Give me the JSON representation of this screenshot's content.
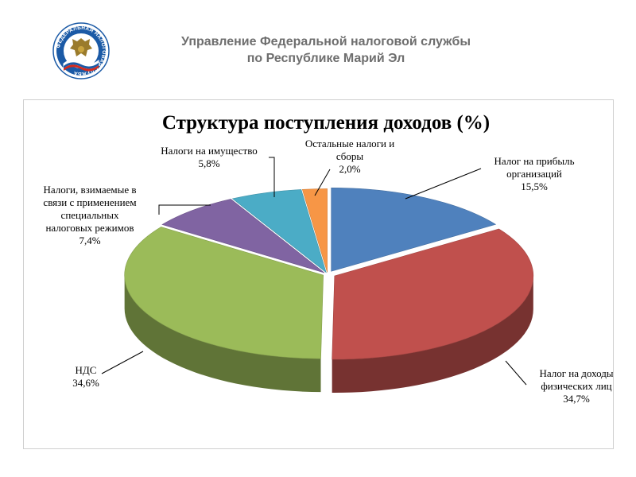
{
  "header": {
    "line1": "Управление Федеральной налоговой службы",
    "line2": "по Республике Марий Эл"
  },
  "logo": {
    "icon": "tax-service-emblem-icon",
    "ring_text": "ФЕДЕРАЛЬНАЯ НАЛОГОВАЯ СЛУЖБА"
  },
  "chart_data": {
    "type": "pie",
    "title": "Структура поступления доходов (%)",
    "slices": [
      {
        "name": "Налог на прибыль организаций",
        "label_lines": [
          "Налог на прибыль",
          "организаций"
        ],
        "value": 15.5,
        "value_label": "15,5%",
        "color": "#4f81bd"
      },
      {
        "name": "Налог на доходы физических лиц",
        "label_lines": [
          "Налог на доходы",
          "физических лиц"
        ],
        "value": 34.7,
        "value_label": "34,7%",
        "color": "#c0504d"
      },
      {
        "name": "НДС",
        "label_lines": [
          "НДС"
        ],
        "value": 34.6,
        "value_label": "34,6%",
        "color": "#9bbb59"
      },
      {
        "name": "Налоги, взимаемые в связи с применением специальных налоговых режимов",
        "label_lines": [
          "Налоги, взимаемые в",
          "связи с применением",
          "специальных",
          "налоговых режимов"
        ],
        "value": 7.4,
        "value_label": "7,4%",
        "color": "#8064a2"
      },
      {
        "name": "Налоги на имущество",
        "label_lines": [
          "Налоги на имущество"
        ],
        "value": 5.8,
        "value_label": "5,8%",
        "color": "#4bacc6"
      },
      {
        "name": "Остальные налоги и сборы",
        "label_lines": [
          "Остальные налоги и",
          "сборы"
        ],
        "value": 2.0,
        "value_label": "2,0%",
        "color": "#f79646"
      }
    ]
  }
}
